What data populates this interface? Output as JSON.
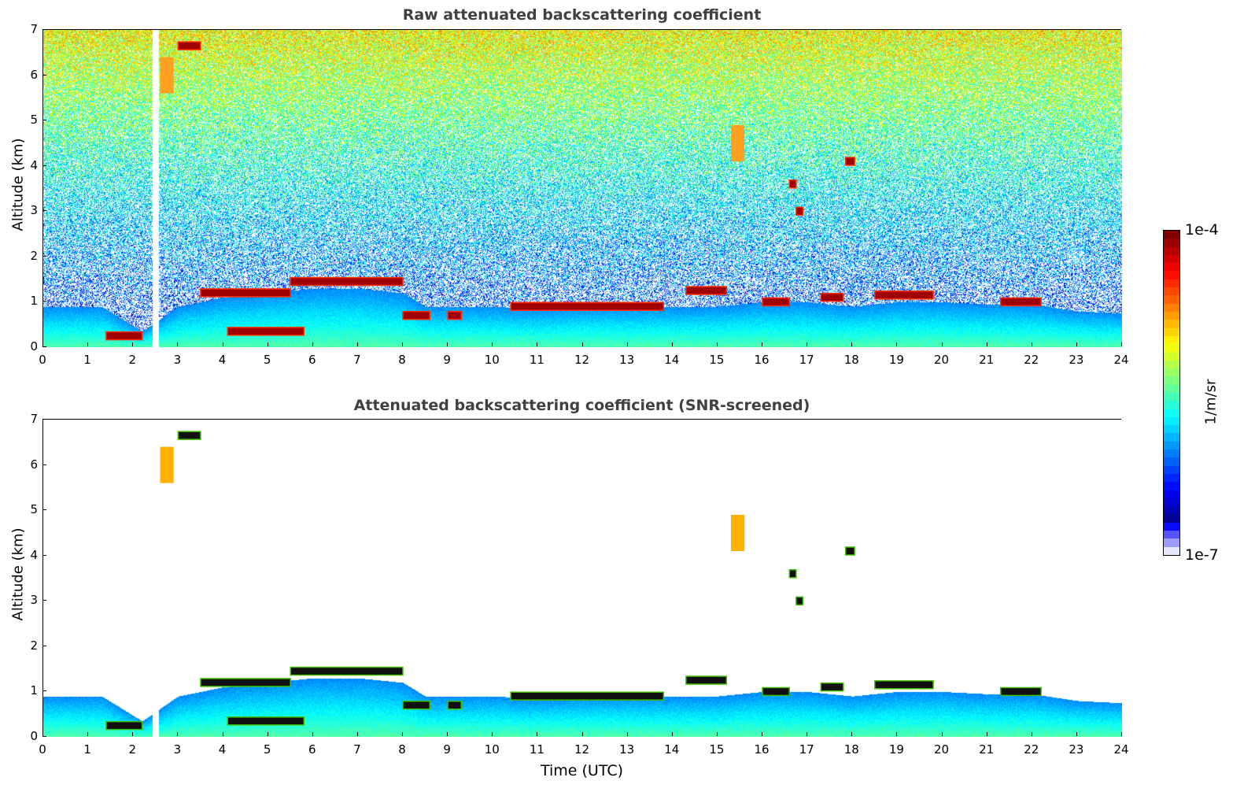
{
  "chart_data": {
    "type": "heatmap",
    "colorbar": {
      "label": "1/m/sr",
      "min_label": "1e-7",
      "max_label": "1e-4",
      "min": 1e-07,
      "max": 0.0001,
      "scale": "log",
      "colormap": "jet"
    },
    "xlabel": "Time (UTC)",
    "xlim": [
      0,
      24
    ],
    "ylim": [
      0,
      7
    ],
    "xticks": [
      "0",
      "1",
      "2",
      "3",
      "4",
      "5",
      "6",
      "7",
      "8",
      "9",
      "10",
      "11",
      "12",
      "13",
      "14",
      "15",
      "16",
      "17",
      "18",
      "19",
      "20",
      "21",
      "22",
      "23",
      "24"
    ],
    "yticks": [
      "0",
      "1",
      "2",
      "3",
      "4",
      "5",
      "6",
      "7"
    ],
    "boundary_layer_top_km": {
      "time": [
        0,
        1,
        1.3,
        2.2,
        3,
        4,
        5,
        6,
        7,
        8,
        8.5,
        9,
        10,
        11,
        12,
        13,
        14,
        15,
        16,
        17,
        18,
        19,
        20,
        21,
        22,
        23,
        24
      ],
      "alt": [
        0.9,
        0.9,
        0.9,
        0.35,
        0.9,
        1.1,
        1.2,
        1.3,
        1.3,
        1.2,
        0.9,
        0.9,
        0.9,
        0.85,
        0.9,
        0.9,
        0.9,
        0.9,
        1.0,
        1.0,
        0.9,
        1.0,
        1.0,
        0.95,
        0.95,
        0.8,
        0.75
      ]
    },
    "cloud_layers": [
      {
        "t0": 1.4,
        "t1": 2.2,
        "alt": 0.25,
        "kind": "cloud"
      },
      {
        "t0": 3.5,
        "t1": 5.5,
        "alt": 1.2,
        "kind": "cloud"
      },
      {
        "t0": 5.5,
        "t1": 8.0,
        "alt": 1.45,
        "kind": "cloud"
      },
      {
        "t0": 4.1,
        "t1": 5.8,
        "alt": 0.35,
        "kind": "cloud"
      },
      {
        "t0": 8.0,
        "t1": 8.6,
        "alt": 0.7,
        "kind": "cloud"
      },
      {
        "t0": 9.0,
        "t1": 9.3,
        "alt": 0.7,
        "kind": "cloud"
      },
      {
        "t0": 10.4,
        "t1": 13.8,
        "alt": 0.9,
        "kind": "cloud"
      },
      {
        "t0": 14.3,
        "t1": 15.2,
        "alt": 1.25,
        "kind": "cloud"
      },
      {
        "t0": 16.0,
        "t1": 16.6,
        "alt": 1.0,
        "kind": "cloud"
      },
      {
        "t0": 17.3,
        "t1": 17.8,
        "alt": 1.1,
        "kind": "cloud"
      },
      {
        "t0": 18.5,
        "t1": 19.8,
        "alt": 1.15,
        "kind": "cloud"
      },
      {
        "t0": 21.3,
        "t1": 22.2,
        "alt": 1.0,
        "kind": "cloud"
      },
      {
        "t0": 3.0,
        "t1": 3.5,
        "alt": 6.65,
        "kind": "cloud"
      },
      {
        "t0": 17.85,
        "t1": 18.05,
        "alt": 4.1,
        "kind": "cloud"
      },
      {
        "t0": 16.75,
        "t1": 16.9,
        "alt": 3.0,
        "kind": "cloud"
      },
      {
        "t0": 16.6,
        "t1": 16.75,
        "alt": 3.6,
        "kind": "cloud"
      },
      {
        "t0": 2.6,
        "t1": 2.9,
        "alt": 6.0,
        "kind": "aerosol"
      },
      {
        "t0": 15.3,
        "t1": 15.6,
        "alt": 4.5,
        "kind": "aerosol"
      }
    ],
    "data_gaps_hours": [
      2.5
    ],
    "panels": [
      {
        "title": "Raw attenuated backscattering coefficient",
        "ylabel": "Altitude (km)",
        "screened": false
      },
      {
        "title": "Attenuated backscattering coefficient (SNR-screened)",
        "ylabel": "Altitude (km)",
        "screened": true
      }
    ]
  }
}
